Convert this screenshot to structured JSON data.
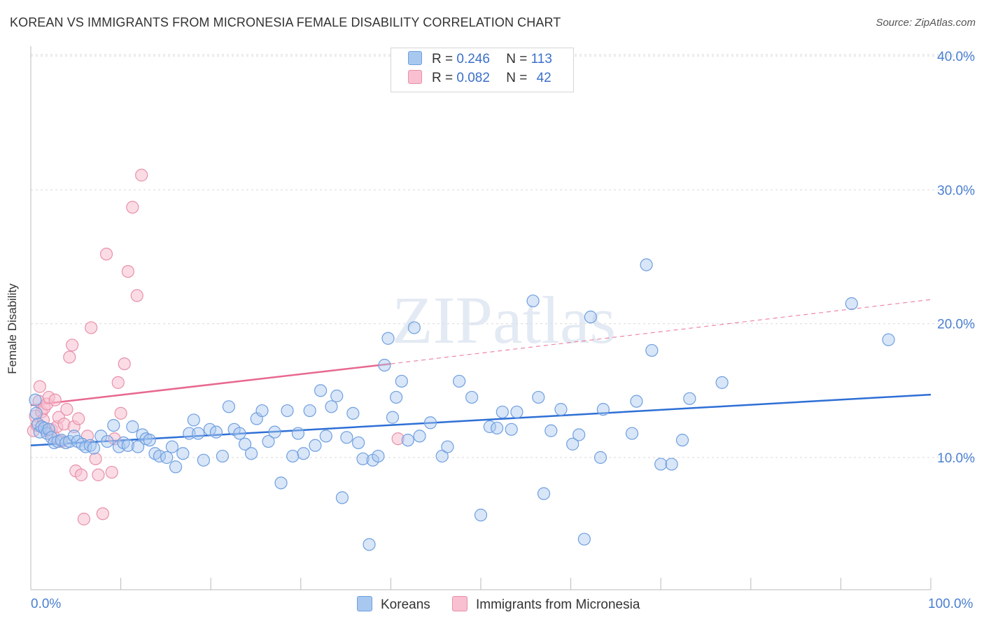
{
  "title": "KOREAN VS IMMIGRANTS FROM MICRONESIA FEMALE DISABILITY CORRELATION CHART",
  "source": "Source: ZipAtlas.com",
  "watermark": "ZIPatlas",
  "legend": {
    "rows": [
      {
        "r_label": "R =",
        "r_value": "0.246",
        "n_label": "N =",
        "n_value": "113",
        "color": "#a8c8f0",
        "border": "#6f9fe0"
      },
      {
        "r_label": "R =",
        "r_value": "0.082",
        "n_label": "N =",
        "n_value": "42",
        "color": "#f8c0d0",
        "border": "#e890aa"
      }
    ]
  },
  "bottom_legend": [
    "Koreans",
    "Immigrants from Micronesia"
  ],
  "colors": {
    "korean_fill": "#a8c8f0",
    "korean_stroke": "#6f9fe0",
    "korean_line": "#2e6fd6",
    "micro_fill": "#f8c0d0",
    "micro_stroke": "#e890aa",
    "micro_line": "#e8688f",
    "tick_label": "#4a7fd1",
    "grid": "#d9d9d9"
  },
  "chart_data": {
    "type": "scatter",
    "title": "KOREAN VS IMMIGRANTS FROM MICRONESIA FEMALE DISABILITY CORRELATION CHART",
    "xlabel": "",
    "ylabel": "Female Disability",
    "xlim": [
      0,
      100
    ],
    "ylim": [
      0,
      41
    ],
    "x_tick_labels": [
      "0.0%",
      "100.0%"
    ],
    "y_ticks": [
      10,
      20,
      30,
      40
    ],
    "y_tick_labels": [
      "10.0%",
      "20.0%",
      "30.0%",
      "40.0%"
    ],
    "series": [
      {
        "name": "Koreans",
        "trend": {
          "x": [
            0,
            100
          ],
          "y": [
            10.9,
            14.7
          ]
        },
        "points": [
          [
            0.5,
            14.3
          ],
          [
            0.6,
            13.3
          ],
          [
            0.8,
            12.5
          ],
          [
            1.0,
            11.9
          ],
          [
            1.2,
            12.3
          ],
          [
            1.5,
            12.2
          ],
          [
            1.8,
            11.8
          ],
          [
            2.0,
            12.1
          ],
          [
            2.3,
            11.5
          ],
          [
            2.6,
            11.1
          ],
          [
            3.0,
            11.2
          ],
          [
            3.4,
            11.3
          ],
          [
            3.9,
            11.1
          ],
          [
            4.3,
            11.2
          ],
          [
            4.8,
            11.6
          ],
          [
            5.2,
            11.2
          ],
          [
            5.7,
            11.0
          ],
          [
            6.1,
            10.8
          ],
          [
            6.6,
            10.9
          ],
          [
            7.0,
            10.7
          ],
          [
            7.8,
            11.6
          ],
          [
            8.5,
            11.2
          ],
          [
            9.2,
            12.4
          ],
          [
            9.8,
            10.8
          ],
          [
            10.3,
            11.1
          ],
          [
            10.8,
            10.9
          ],
          [
            11.3,
            12.3
          ],
          [
            11.9,
            10.8
          ],
          [
            12.4,
            11.7
          ],
          [
            12.8,
            11.4
          ],
          [
            13.2,
            11.3
          ],
          [
            13.8,
            10.3
          ],
          [
            14.3,
            10.1
          ],
          [
            15.1,
            10.0
          ],
          [
            15.7,
            10.8
          ],
          [
            16.1,
            9.3
          ],
          [
            16.9,
            10.3
          ],
          [
            17.6,
            11.8
          ],
          [
            18.1,
            12.8
          ],
          [
            18.6,
            11.8
          ],
          [
            19.2,
            9.8
          ],
          [
            19.9,
            12.1
          ],
          [
            20.6,
            11.9
          ],
          [
            21.3,
            10.1
          ],
          [
            22.0,
            13.8
          ],
          [
            22.6,
            12.1
          ],
          [
            23.2,
            11.8
          ],
          [
            23.8,
            11.0
          ],
          [
            24.5,
            10.3
          ],
          [
            25.1,
            12.9
          ],
          [
            25.7,
            13.5
          ],
          [
            26.4,
            11.2
          ],
          [
            27.1,
            11.9
          ],
          [
            27.8,
            8.1
          ],
          [
            28.5,
            13.5
          ],
          [
            29.1,
            10.1
          ],
          [
            29.7,
            11.8
          ],
          [
            30.3,
            10.3
          ],
          [
            31.0,
            13.5
          ],
          [
            31.6,
            10.9
          ],
          [
            32.2,
            15.0
          ],
          [
            32.8,
            11.6
          ],
          [
            33.4,
            13.8
          ],
          [
            34.0,
            14.6
          ],
          [
            34.6,
            7.0
          ],
          [
            35.1,
            11.5
          ],
          [
            35.8,
            13.3
          ],
          [
            36.4,
            11.1
          ],
          [
            36.9,
            9.9
          ],
          [
            37.6,
            3.5
          ],
          [
            38.0,
            9.8
          ],
          [
            38.6,
            10.1
          ],
          [
            39.3,
            16.9
          ],
          [
            39.7,
            18.9
          ],
          [
            40.2,
            13.0
          ],
          [
            40.6,
            14.5
          ],
          [
            41.2,
            15.7
          ],
          [
            41.9,
            11.3
          ],
          [
            42.6,
            19.7
          ],
          [
            43.2,
            11.6
          ],
          [
            44.4,
            12.6
          ],
          [
            45.7,
            10.1
          ],
          [
            46.3,
            10.8
          ],
          [
            47.6,
            15.7
          ],
          [
            49.0,
            14.5
          ],
          [
            50.0,
            5.7
          ],
          [
            51.0,
            12.3
          ],
          [
            51.8,
            12.2
          ],
          [
            52.4,
            13.4
          ],
          [
            53.4,
            12.1
          ],
          [
            54.0,
            13.4
          ],
          [
            55.8,
            21.7
          ],
          [
            56.4,
            14.5
          ],
          [
            57.0,
            7.3
          ],
          [
            57.8,
            12.0
          ],
          [
            58.9,
            13.6
          ],
          [
            60.2,
            11.0
          ],
          [
            60.9,
            11.7
          ],
          [
            61.5,
            3.9
          ],
          [
            62.2,
            20.5
          ],
          [
            63.3,
            10.0
          ],
          [
            63.6,
            13.6
          ],
          [
            66.8,
            11.8
          ],
          [
            67.3,
            14.2
          ],
          [
            68.4,
            24.4
          ],
          [
            69.0,
            18.0
          ],
          [
            70.0,
            9.5
          ],
          [
            71.2,
            9.5
          ],
          [
            72.4,
            11.3
          ],
          [
            73.2,
            14.4
          ],
          [
            76.8,
            15.6
          ],
          [
            91.2,
            21.5
          ],
          [
            95.3,
            18.8
          ]
        ]
      },
      {
        "name": "Immigrants from Micronesia",
        "trend": {
          "x": [
            0,
            40
          ],
          "y": [
            13.9,
            17.0
          ]
        },
        "trend_extended": {
          "x": [
            40,
            100
          ],
          "y": [
            17.0,
            21.8
          ]
        },
        "points": [
          [
            0.3,
            12.0
          ],
          [
            0.5,
            13.1
          ],
          [
            0.7,
            12.4
          ],
          [
            0.9,
            14.2
          ],
          [
            1.0,
            15.3
          ],
          [
            1.2,
            13.4
          ],
          [
            1.4,
            12.8
          ],
          [
            1.5,
            13.7
          ],
          [
            1.7,
            12.0
          ],
          [
            1.8,
            14.0
          ],
          [
            2.0,
            14.5
          ],
          [
            2.3,
            12.1
          ],
          [
            2.5,
            11.6
          ],
          [
            2.7,
            14.3
          ],
          [
            2.9,
            12.3
          ],
          [
            3.1,
            13.0
          ],
          [
            3.4,
            11.2
          ],
          [
            3.7,
            12.5
          ],
          [
            4.0,
            13.6
          ],
          [
            4.3,
            17.5
          ],
          [
            4.6,
            18.4
          ],
          [
            4.8,
            12.3
          ],
          [
            5.0,
            9.0
          ],
          [
            5.3,
            12.9
          ],
          [
            5.6,
            8.7
          ],
          [
            5.9,
            5.4
          ],
          [
            6.3,
            11.6
          ],
          [
            6.7,
            19.7
          ],
          [
            7.2,
            9.9
          ],
          [
            7.5,
            8.7
          ],
          [
            8.0,
            5.8
          ],
          [
            8.4,
            25.2
          ],
          [
            9.0,
            8.9
          ],
          [
            9.3,
            11.4
          ],
          [
            9.7,
            15.6
          ],
          [
            10.0,
            13.3
          ],
          [
            10.4,
            17.0
          ],
          [
            10.8,
            23.9
          ],
          [
            11.3,
            28.7
          ],
          [
            11.8,
            22.1
          ],
          [
            12.3,
            31.1
          ],
          [
            40.8,
            11.4
          ]
        ]
      }
    ]
  }
}
